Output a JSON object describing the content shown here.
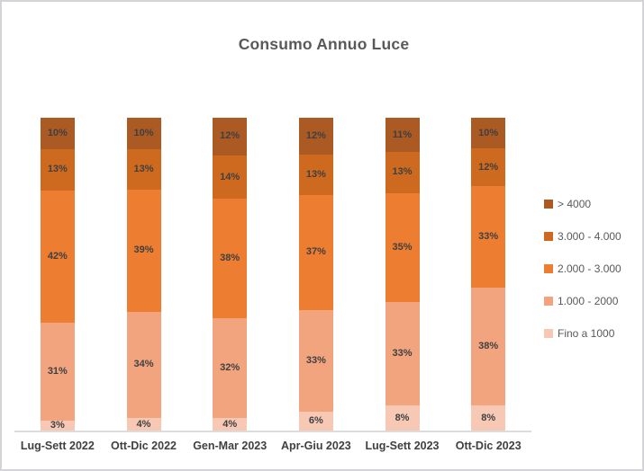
{
  "chart_data": {
    "type": "bar",
    "stacked": true,
    "percent_stacked": true,
    "title": "Consumo Annuo Luce",
    "categories": [
      "Lug-Sett 2022",
      "Ott-Dic 2022",
      "Gen-Mar 2023",
      "Apr-Giu 2023",
      "Lug-Sett 2023",
      "Ott-Dic 2023"
    ],
    "series_order": "top-to-bottom",
    "series": [
      {
        "name": "> 4000",
        "color": "#AC5A24",
        "values": [
          10,
          10,
          12,
          12,
          11,
          10
        ]
      },
      {
        "name": "3.000 - 4.000",
        "color": "#CE6A1F",
        "values": [
          13,
          13,
          14,
          13,
          13,
          12
        ]
      },
      {
        "name": "2.000 - 3.000",
        "color": "#ED7D31",
        "values": [
          42,
          39,
          38,
          37,
          35,
          33
        ]
      },
      {
        "name": "1.000 - 2000",
        "color": "#F2A47F",
        "values": [
          31,
          34,
          32,
          33,
          33,
          38
        ]
      },
      {
        "name": "Fino a 1000",
        "color": "#F7C9B4",
        "values": [
          3,
          4,
          4,
          6,
          8,
          8
        ]
      }
    ],
    "value_label_format": "{v}%",
    "value_label_color": "#3F3F3F",
    "xlabel": "",
    "ylabel": "",
    "ylim": [
      0,
      100
    ],
    "grid": false,
    "legend_position": "right",
    "axis_line_color": "#DCDCDC",
    "title_color": "#595959",
    "frame_border_color": "#D4D4D8"
  }
}
